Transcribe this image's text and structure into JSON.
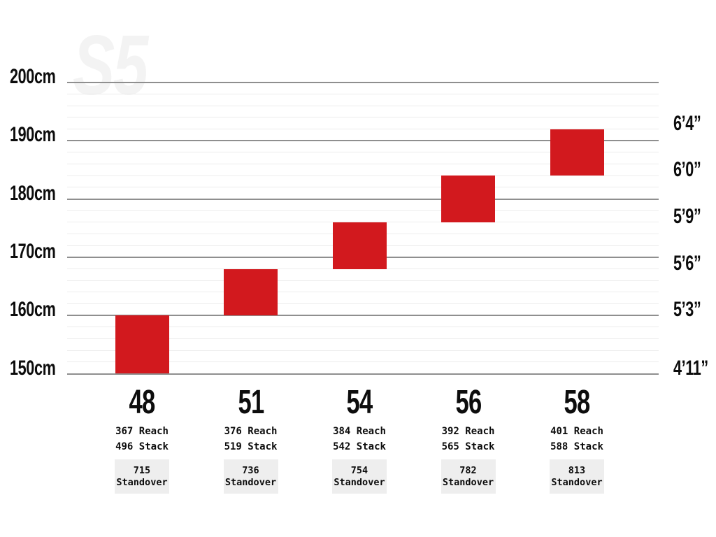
{
  "watermark": {
    "text": "S5"
  },
  "colors": {
    "bar_red": "#d2191e",
    "major_gridline": "#8f8f8f",
    "minor_gridline": "#ececec",
    "standover_box_bg": "#eeeeee",
    "label_text": "#0d0d0d",
    "watermark_text": "#f3f3f3"
  },
  "chart_data": {
    "type": "bar",
    "subtype": "floating-column-ranges",
    "title": "S5",
    "ylim_cm": [
      150,
      200
    ],
    "grid": {
      "major_step_cm": 10,
      "minor_step_cm": 2,
      "grid_on": true
    },
    "legend": "none",
    "left_axis_ticks": [
      {
        "text": "200cm",
        "cm": 200
      },
      {
        "text": "190cm",
        "cm": 190
      },
      {
        "text": "180cm",
        "cm": 180
      },
      {
        "text": "170cm",
        "cm": 170
      },
      {
        "text": "160cm",
        "cm": 160
      },
      {
        "text": "150cm",
        "cm": 150
      }
    ],
    "right_axis_ticks": [
      {
        "text": "6’4”",
        "cm": 192
      },
      {
        "text": "6’0”",
        "cm": 184
      },
      {
        "text": "5’9”",
        "cm": 176
      },
      {
        "text": "5’6”",
        "cm": 168
      },
      {
        "text": "5’3”",
        "cm": 160
      },
      {
        "text": "4’11”",
        "cm": 150
      }
    ],
    "categories": [
      "48",
      "51",
      "54",
      "56",
      "58"
    ],
    "series": [
      {
        "name": "rider_height_range_cm",
        "values": [
          [
            150,
            160
          ],
          [
            160,
            168
          ],
          [
            168,
            176
          ],
          [
            176,
            184
          ],
          [
            184,
            192
          ]
        ]
      }
    ],
    "spec_labels": {
      "reach": "Reach",
      "stack": "Stack",
      "standover": "Standover"
    },
    "sizes": [
      {
        "size": "48",
        "height_range_cm": [
          150,
          160
        ],
        "reach": "367",
        "stack": "496",
        "standover": "715"
      },
      {
        "size": "51",
        "height_range_cm": [
          160,
          168
        ],
        "reach": "376",
        "stack": "519",
        "standover": "736"
      },
      {
        "size": "54",
        "height_range_cm": [
          168,
          176
        ],
        "reach": "384",
        "stack": "542",
        "standover": "754"
      },
      {
        "size": "56",
        "height_range_cm": [
          176,
          184
        ],
        "reach": "392",
        "stack": "565",
        "standover": "782"
      },
      {
        "size": "58",
        "height_range_cm": [
          184,
          192
        ],
        "reach": "401",
        "stack": "588",
        "standover": "813"
      }
    ]
  }
}
